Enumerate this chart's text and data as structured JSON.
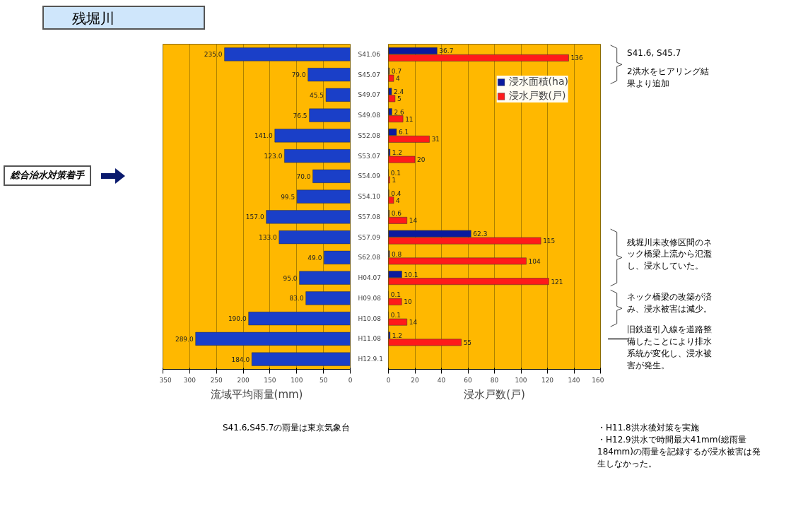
{
  "chart_data": [
    {
      "type": "bar",
      "orientation": "horizontal",
      "title": "残堀川",
      "xlabel": "流域平均雨量(mm)",
      "categories": [
        "S41.06",
        "S45.07",
        "S49.07",
        "S49.08",
        "S52.08",
        "S53.07",
        "S54.09",
        "S54.10",
        "S57.08",
        "S57.09",
        "S62.08",
        "H04.07",
        "H09.08",
        "H10.08",
        "H11.08",
        "H12.9.1"
      ],
      "values": [
        235.0,
        79.0,
        45.5,
        76.5,
        141.0,
        123.0,
        70.0,
        99.5,
        157.0,
        133.0,
        49.0,
        95.0,
        83.0,
        190.0,
        289.0,
        184.0
      ],
      "value_labels": [
        "235.0",
        "79.0",
        "45.5",
        "76.5",
        "141.0",
        "123.0",
        "70.0",
        "99.5",
        "157.0",
        "133.0",
        "49.0",
        "95.0",
        "83.0",
        "190.0",
        "289.0",
        "184.0"
      ],
      "color": "#1a3fc8",
      "xlim": [
        350,
        0
      ],
      "xticks": [
        0,
        50,
        100,
        150,
        200,
        250,
        300,
        350
      ],
      "grid": "x",
      "annotations": [
        "総合治水対策着手",
        "S41.6,S45.7の雨量は東京気象台"
      ]
    },
    {
      "type": "bar",
      "orientation": "horizontal",
      "xlabel": "浸水戸数(戸)",
      "categories": [
        "S41.06",
        "S45.07",
        "S49.07",
        "S49.08",
        "S52.08",
        "S53.07",
        "S54.09",
        "S54.10",
        "S57.08",
        "S57.09",
        "S62.08",
        "H04.07",
        "H09.08",
        "H10.08",
        "H11.08",
        "H12.9.1"
      ],
      "series": [
        {
          "name": "浸水面積(ha)",
          "color": "#0a1a9e",
          "values": [
            36.7,
            0.7,
            2.4,
            2.6,
            6.1,
            1.2,
            0.1,
            0.4,
            0.6,
            62.3,
            0.8,
            10.1,
            0.1,
            0.1,
            1.2,
            null
          ]
        },
        {
          "name": "浸水戸数(戸)",
          "color": "#ff1a1a",
          "values": [
            136,
            4,
            5,
            11,
            31,
            20,
            1,
            4,
            14,
            115,
            104,
            121,
            10,
            14,
            55,
            null
          ]
        }
      ],
      "xlim": [
        0,
        160
      ],
      "xticks": [
        0,
        20,
        40,
        60,
        80,
        100,
        120,
        140,
        160
      ],
      "grid": "x",
      "legend": "top right",
      "data_labels": true,
      "tick_labels": "x",
      "annotations": [
        "S41.6, S45.7",
        "2洪水をヒアリング結果より追加",
        "残堀川未改修区間のネック橋梁上流から氾濫し、浸水していた。",
        "ネック橋梁の改築が済み、浸水被害は減少。",
        "旧鉄道引入線を道路整備したことにより排水系統が変化し、浸水被害が発生。",
        "・H11.8洪水後対策を実施",
        "・H12.9洪水で時間最大41mm(総雨量184mm)の雨量を記録するが浸水被害は発生しなかった。"
      ]
    }
  ]
}
